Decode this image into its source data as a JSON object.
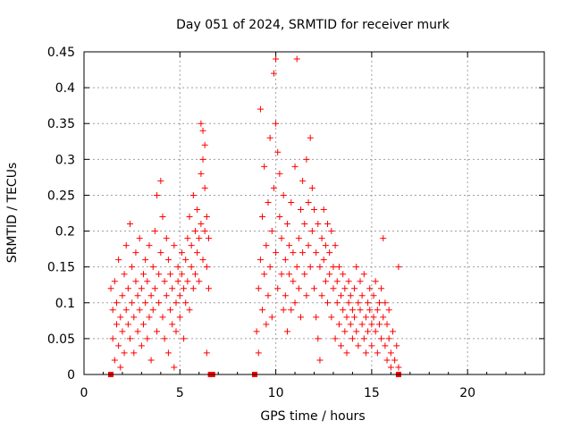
{
  "chart_data": {
    "type": "scatter",
    "title": "Day 051 of 2024, SRMTID for receiver murk",
    "xlabel": "GPS time / hours",
    "ylabel": "SRMTID / TECUs",
    "xlim": [
      0,
      24
    ],
    "ylim": [
      0,
      0.45
    ],
    "x_ticks": [
      0,
      5,
      10,
      15,
      20
    ],
    "y_ticks": [
      "0",
      "0.05",
      "0.1",
      "0.15",
      "0.2",
      "0.25",
      "0.3",
      "0.35",
      "0.4",
      "0.45"
    ],
    "grid": true,
    "marker": "plus",
    "color": "#ff0000",
    "series": [
      {
        "marker": "plus",
        "points": [
          [
            1.4,
            0.12
          ],
          [
            1.5,
            0.05
          ],
          [
            1.5,
            0.09
          ],
          [
            1.6,
            0.02
          ],
          [
            1.6,
            0.13
          ],
          [
            1.7,
            0.07
          ],
          [
            1.7,
            0.1
          ],
          [
            1.8,
            0.04
          ],
          [
            1.8,
            0.16
          ],
          [
            1.9,
            0.08
          ],
          [
            1.9,
            0.01
          ],
          [
            2.0,
            0.11
          ],
          [
            2.0,
            0.06
          ],
          [
            2.1,
            0.14
          ],
          [
            2.1,
            0.03
          ],
          [
            2.2,
            0.09
          ],
          [
            2.2,
            0.18
          ],
          [
            2.3,
            0.07
          ],
          [
            2.3,
            0.12
          ],
          [
            2.4,
            0.05
          ],
          [
            2.4,
            0.21
          ],
          [
            2.5,
            0.1
          ],
          [
            2.5,
            0.15
          ],
          [
            2.6,
            0.08
          ],
          [
            2.6,
            0.03
          ],
          [
            2.7,
            0.13
          ],
          [
            2.7,
            0.17
          ],
          [
            2.8,
            0.06
          ],
          [
            2.8,
            0.11
          ],
          [
            2.9,
            0.09
          ],
          [
            2.9,
            0.19
          ],
          [
            3.0,
            0.12
          ],
          [
            3.0,
            0.04
          ],
          [
            3.1,
            0.14
          ],
          [
            3.1,
            0.07
          ],
          [
            3.2,
            0.16
          ],
          [
            3.2,
            0.1
          ],
          [
            3.3,
            0.05
          ],
          [
            3.3,
            0.13
          ],
          [
            3.4,
            0.08
          ],
          [
            3.4,
            0.18
          ],
          [
            3.5,
            0.11
          ],
          [
            3.5,
            0.02
          ],
          [
            3.6,
            0.15
          ],
          [
            3.6,
            0.09
          ],
          [
            3.7,
            0.2
          ],
          [
            3.7,
            0.12
          ],
          [
            3.8,
            0.06
          ],
          [
            3.8,
            0.25
          ],
          [
            3.9,
            0.14
          ],
          [
            3.9,
            0.1
          ],
          [
            4.0,
            0.17
          ],
          [
            4.0,
            0.27
          ],
          [
            4.1,
            0.08
          ],
          [
            4.1,
            0.22
          ],
          [
            4.2,
            0.13
          ],
          [
            4.2,
            0.05
          ],
          [
            4.3,
            0.19
          ],
          [
            4.3,
            0.11
          ],
          [
            4.4,
            0.16
          ],
          [
            4.4,
            0.03
          ],
          [
            4.5,
            0.09
          ],
          [
            4.5,
            0.14
          ],
          [
            4.6,
            0.07
          ],
          [
            4.6,
            0.12
          ],
          [
            4.7,
            0.01
          ],
          [
            4.7,
            0.18
          ],
          [
            4.8,
            0.1
          ],
          [
            4.8,
            0.06
          ],
          [
            4.9,
            0.13
          ],
          [
            4.9,
            0.15
          ],
          [
            5.0,
            0.11
          ],
          [
            5.0,
            0.08
          ],
          [
            5.1,
            0.14
          ],
          [
            5.1,
            0.17
          ],
          [
            5.2,
            0.12
          ],
          [
            5.2,
            0.05
          ],
          [
            5.3,
            0.16
          ],
          [
            5.3,
            0.1
          ],
          [
            5.4,
            0.19
          ],
          [
            5.4,
            0.13
          ],
          [
            5.5,
            0.09
          ],
          [
            5.5,
            0.22
          ],
          [
            5.6,
            0.15
          ],
          [
            5.6,
            0.18
          ],
          [
            5.7,
            0.12
          ],
          [
            5.7,
            0.25
          ],
          [
            5.8,
            0.2
          ],
          [
            5.8,
            0.14
          ],
          [
            5.9,
            0.17
          ],
          [
            5.9,
            0.23
          ],
          [
            6.0,
            0.19
          ],
          [
            6.0,
            0.13
          ],
          [
            6.1,
            0.21
          ],
          [
            6.1,
            0.28
          ],
          [
            6.2,
            0.16
          ],
          [
            6.2,
            0.34
          ],
          [
            6.3,
            0.2
          ],
          [
            6.3,
            0.26
          ],
          [
            6.4,
            0.22
          ],
          [
            6.4,
            0.15
          ],
          [
            6.5,
            0.12
          ],
          [
            6.3,
            0.32
          ],
          [
            6.2,
            0.3
          ],
          [
            6.1,
            0.35
          ],
          [
            6.4,
            0.03
          ],
          [
            6.5,
            0.19
          ],
          [
            9.0,
            0.06
          ],
          [
            9.1,
            0.12
          ],
          [
            9.1,
            0.03
          ],
          [
            9.2,
            0.16
          ],
          [
            9.2,
            0.37
          ],
          [
            9.3,
            0.09
          ],
          [
            9.3,
            0.22
          ],
          [
            9.4,
            0.14
          ],
          [
            9.4,
            0.29
          ],
          [
            9.5,
            0.07
          ],
          [
            9.5,
            0.18
          ],
          [
            9.6,
            0.11
          ],
          [
            9.6,
            0.24
          ],
          [
            9.7,
            0.15
          ],
          [
            9.7,
            0.33
          ],
          [
            9.8,
            0.2
          ],
          [
            9.8,
            0.08
          ],
          [
            9.9,
            0.26
          ],
          [
            9.9,
            0.42
          ],
          [
            10.0,
            0.44
          ],
          [
            10.0,
            0.35
          ],
          [
            10.0,
            0.17
          ],
          [
            10.1,
            0.31
          ],
          [
            10.1,
            0.12
          ],
          [
            10.2,
            0.22
          ],
          [
            10.2,
            0.28
          ],
          [
            10.3,
            0.14
          ],
          [
            10.3,
            0.19
          ],
          [
            10.4,
            0.09
          ],
          [
            10.4,
            0.25
          ],
          [
            10.5,
            0.16
          ],
          [
            10.5,
            0.11
          ],
          [
            10.6,
            0.21
          ],
          [
            10.6,
            0.06
          ],
          [
            10.7,
            0.18
          ],
          [
            10.7,
            0.14
          ],
          [
            10.8,
            0.09
          ],
          [
            10.8,
            0.24
          ],
          [
            10.9,
            0.13
          ],
          [
            10.9,
            0.17
          ],
          [
            11.0,
            0.1
          ],
          [
            11.0,
            0.29
          ],
          [
            11.1,
            0.15
          ],
          [
            11.1,
            0.44
          ],
          [
            11.2,
            0.19
          ],
          [
            11.2,
            0.12
          ],
          [
            11.3,
            0.23
          ],
          [
            11.3,
            0.08
          ],
          [
            11.4,
            0.17
          ],
          [
            11.4,
            0.27
          ],
          [
            11.5,
            0.14
          ],
          [
            11.5,
            0.21
          ],
          [
            11.6,
            0.11
          ],
          [
            11.6,
            0.3
          ],
          [
            11.7,
            0.18
          ],
          [
            11.7,
            0.24
          ],
          [
            11.8,
            0.33
          ],
          [
            11.8,
            0.15
          ],
          [
            11.9,
            0.2
          ],
          [
            11.9,
            0.26
          ],
          [
            12.0,
            0.12
          ],
          [
            12.0,
            0.23
          ],
          [
            12.1,
            0.17
          ],
          [
            12.1,
            0.08
          ],
          [
            12.2,
            0.21
          ],
          [
            12.2,
            0.05
          ],
          [
            12.3,
            0.15
          ],
          [
            12.3,
            0.02
          ],
          [
            12.4,
            0.19
          ],
          [
            12.4,
            0.11
          ],
          [
            12.5,
            0.16
          ],
          [
            12.5,
            0.23
          ],
          [
            12.6,
            0.13
          ],
          [
            12.6,
            0.18
          ],
          [
            12.7,
            0.21
          ],
          [
            12.7,
            0.1
          ],
          [
            12.8,
            0.17
          ],
          [
            12.8,
            0.14
          ],
          [
            12.9,
            0.2
          ],
          [
            12.9,
            0.08
          ],
          [
            13.0,
            0.15
          ],
          [
            13.0,
            0.12
          ],
          [
            13.1,
            0.18
          ],
          [
            13.1,
            0.05
          ],
          [
            13.2,
            0.13
          ],
          [
            13.2,
            0.1
          ],
          [
            13.3,
            0.07
          ],
          [
            13.3,
            0.15
          ],
          [
            13.4,
            0.11
          ],
          [
            13.4,
            0.04
          ],
          [
            13.5,
            0.09
          ],
          [
            13.5,
            0.14
          ],
          [
            13.6,
            0.06
          ],
          [
            13.6,
            0.12
          ],
          [
            13.7,
            0.08
          ],
          [
            13.7,
            0.03
          ],
          [
            13.8,
            0.1
          ],
          [
            13.8,
            0.13
          ],
          [
            13.9,
            0.07
          ],
          [
            13.9,
            0.11
          ],
          [
            14.0,
            0.09
          ],
          [
            14.0,
            0.05
          ],
          [
            14.1,
            0.12
          ],
          [
            14.1,
            0.08
          ],
          [
            14.2,
            0.15
          ],
          [
            14.2,
            0.06
          ],
          [
            14.3,
            0.1
          ],
          [
            14.3,
            0.04
          ],
          [
            14.4,
            0.13
          ],
          [
            14.4,
            0.09
          ],
          [
            14.5,
            0.07
          ],
          [
            14.5,
            0.11
          ],
          [
            14.6,
            0.05
          ],
          [
            14.6,
            0.14
          ],
          [
            14.7,
            0.08
          ],
          [
            14.7,
            0.03
          ],
          [
            14.8,
            0.1
          ],
          [
            14.8,
            0.06
          ],
          [
            14.9,
            0.12
          ],
          [
            14.9,
            0.09
          ],
          [
            15.0,
            0.07
          ],
          [
            15.0,
            0.04
          ],
          [
            15.1,
            0.11
          ],
          [
            15.1,
            0.08
          ],
          [
            15.2,
            0.06
          ],
          [
            15.2,
            0.13
          ],
          [
            15.3,
            0.09
          ],
          [
            15.3,
            0.03
          ],
          [
            15.4,
            0.1
          ],
          [
            15.4,
            0.07
          ],
          [
            15.5,
            0.12
          ],
          [
            15.5,
            0.05
          ],
          [
            15.6,
            0.08
          ],
          [
            15.6,
            0.19
          ],
          [
            15.7,
            0.1
          ],
          [
            15.7,
            0.04
          ],
          [
            15.8,
            0.07
          ],
          [
            15.8,
            0.02
          ],
          [
            15.9,
            0.09
          ],
          [
            15.9,
            0.05
          ],
          [
            16.0,
            0.03
          ],
          [
            16.0,
            0.01
          ],
          [
            16.1,
            0.06
          ],
          [
            16.2,
            0.02
          ],
          [
            16.3,
            0.04
          ],
          [
            16.4,
            0.15
          ],
          [
            16.4,
            0.01
          ]
        ]
      }
    ],
    "square_markers": [
      [
        1.4,
        0.0
      ],
      [
        6.6,
        0.0
      ],
      [
        6.7,
        0.0
      ],
      [
        8.9,
        0.0
      ],
      [
        16.4,
        0.0
      ]
    ]
  }
}
